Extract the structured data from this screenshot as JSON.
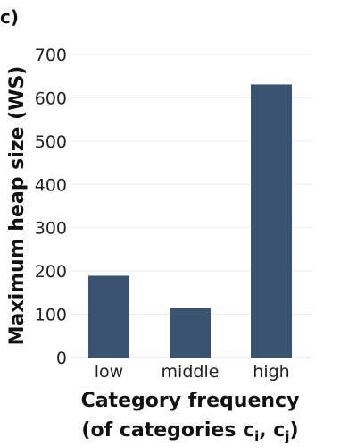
{
  "panel_label": "c)",
  "chart_data": {
    "type": "bar",
    "categories": [
      "low",
      "middle",
      "high"
    ],
    "values": [
      189,
      114,
      631
    ],
    "ylabel": "Maximum heap size (WS)",
    "xlabel_line1": "Category frequency",
    "xlabel_line2_prefix": "(of categories c",
    "xlabel_sub_i": "i",
    "xlabel_sep": ", c",
    "xlabel_sub_j": "j",
    "xlabel_line2_suffix": ")",
    "ylim": [
      0,
      700
    ],
    "yticks": [
      "0",
      "100",
      "200",
      "300",
      "400",
      "500",
      "600",
      "700"
    ],
    "grid": true,
    "colors": {
      "bar": "#3b5370"
    }
  }
}
